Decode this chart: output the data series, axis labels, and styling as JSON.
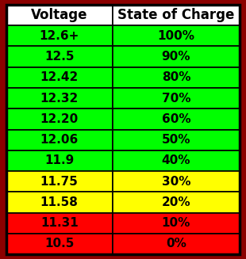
{
  "header": [
    "Voltage",
    "State of Charge"
  ],
  "rows": [
    {
      "voltage": "12.6+",
      "charge": "100%",
      "color": "#00FF00"
    },
    {
      "voltage": "12.5",
      "charge": "90%",
      "color": "#00FF00"
    },
    {
      "voltage": "12.42",
      "charge": "80%",
      "color": "#00FF00"
    },
    {
      "voltage": "12.32",
      "charge": "70%",
      "color": "#00FF00"
    },
    {
      "voltage": "12.20",
      "charge": "60%",
      "color": "#00FF00"
    },
    {
      "voltage": "12.06",
      "charge": "50%",
      "color": "#00FF00"
    },
    {
      "voltage": "11.9",
      "charge": "40%",
      "color": "#00FF00"
    },
    {
      "voltage": "11.75",
      "charge": "30%",
      "color": "#FFFF00"
    },
    {
      "voltage": "11.58",
      "charge": "20%",
      "color": "#FFFF00"
    },
    {
      "voltage": "11.31",
      "charge": "10%",
      "color": "#FF0000"
    },
    {
      "voltage": "10.5",
      "charge": "0%",
      "color": "#FF0000"
    }
  ],
  "header_bg": "#FFFFFF",
  "header_text_color": "#000000",
  "cell_text_color": "#000000",
  "border_outer_color": "#8B0000",
  "grid_color": "#000000",
  "font_size": 11,
  "header_font_size": 12,
  "fig_width": 3.1,
  "fig_height": 3.27,
  "dpi": 100,
  "col_split": 0.455
}
